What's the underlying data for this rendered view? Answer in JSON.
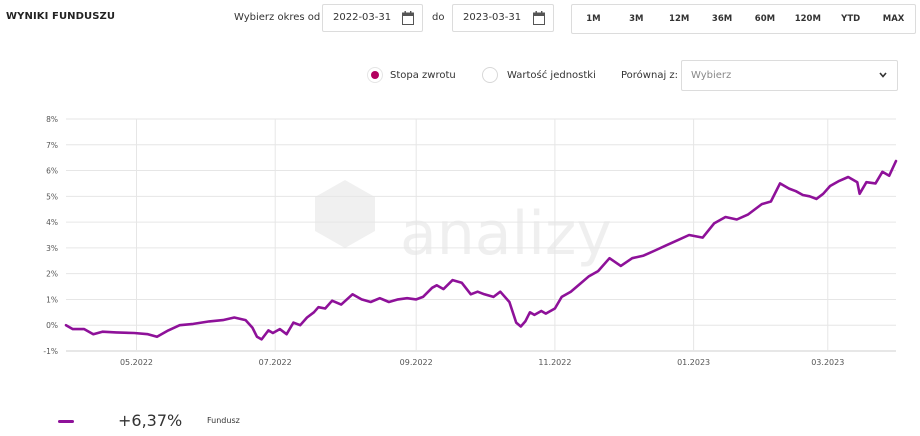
{
  "header": {
    "title": "WYNIKI FUNDUSZU"
  },
  "range": {
    "from_label": "Wybierz okres od",
    "from_value": "2022-03-31",
    "to_label": "do",
    "to_value": "2023-03-31"
  },
  "periods": [
    "1M",
    "3M",
    "12M",
    "36M",
    "60M",
    "120M",
    "YTD",
    "MAX"
  ],
  "mode": {
    "option1": "Stopa zwrotu",
    "option1_selected": true,
    "option2": "Wartość jednostki",
    "option2_selected": false
  },
  "compare": {
    "label": "Porównaj z:",
    "placeholder": "Wybierz"
  },
  "colors": {
    "series": "#8e1199",
    "accent": "#b3005f",
    "grid": "#e6e6e6"
  },
  "chart_data": {
    "type": "line",
    "yticks": [
      "8%",
      "7%",
      "6%",
      "5%",
      "4%",
      "3%",
      "2%",
      "1%",
      "0%",
      "-1%"
    ],
    "xticks": [
      {
        "label": "05.2022",
        "date": "2022-05-01"
      },
      {
        "label": "07.2022",
        "date": "2022-07-01"
      },
      {
        "label": "09.2022",
        "date": "2022-09-01"
      },
      {
        "label": "11.2022",
        "date": "2022-11-01"
      },
      {
        "label": "01.2023",
        "date": "2023-01-01"
      },
      {
        "label": "03.2023",
        "date": "2023-03-01"
      }
    ],
    "xlim": [
      "2022-03-31",
      "2023-03-31"
    ],
    "ylim": [
      -1,
      8
    ],
    "grid": true,
    "series": [
      {
        "name": "Fundusz",
        "x": [
          "2022-03-31",
          "2022-04-03",
          "2022-04-08",
          "2022-04-12",
          "2022-04-16",
          "2022-04-22",
          "2022-04-30",
          "2022-05-06",
          "2022-05-10",
          "2022-05-15",
          "2022-05-20",
          "2022-05-26",
          "2022-06-02",
          "2022-06-08",
          "2022-06-13",
          "2022-06-18",
          "2022-06-21",
          "2022-06-23",
          "2022-06-25",
          "2022-06-28",
          "2022-06-30",
          "2022-07-03",
          "2022-07-06",
          "2022-07-09",
          "2022-07-12",
          "2022-07-15",
          "2022-07-18",
          "2022-07-20",
          "2022-07-23",
          "2022-07-26",
          "2022-07-30",
          "2022-08-04",
          "2022-08-08",
          "2022-08-12",
          "2022-08-16",
          "2022-08-20",
          "2022-08-24",
          "2022-08-28",
          "2022-09-01",
          "2022-09-04",
          "2022-09-08",
          "2022-09-10",
          "2022-09-13",
          "2022-09-17",
          "2022-09-21",
          "2022-09-25",
          "2022-09-28",
          "2022-10-01",
          "2022-10-05",
          "2022-10-08",
          "2022-10-12",
          "2022-10-15",
          "2022-10-17",
          "2022-10-19",
          "2022-10-21",
          "2022-10-23",
          "2022-10-26",
          "2022-10-28",
          "2022-11-01",
          "2022-11-04",
          "2022-11-08",
          "2022-11-12",
          "2022-11-16",
          "2022-11-20",
          "2022-11-25",
          "2022-11-30",
          "2022-12-05",
          "2022-12-10",
          "2022-12-15",
          "2022-12-20",
          "2022-12-25",
          "2022-12-30",
          "2023-01-05",
          "2023-01-10",
          "2023-01-15",
          "2023-01-20",
          "2023-01-25",
          "2023-01-31",
          "2023-02-04",
          "2023-02-08",
          "2023-02-12",
          "2023-02-15",
          "2023-02-18",
          "2023-02-21",
          "2023-02-24",
          "2023-02-27",
          "2023-03-02",
          "2023-03-06",
          "2023-03-10",
          "2023-03-14",
          "2023-03-15",
          "2023-03-18",
          "2023-03-22",
          "2023-03-25",
          "2023-03-28",
          "2023-03-31"
        ],
        "values": [
          0.0,
          -0.15,
          -0.15,
          -0.35,
          -0.25,
          -0.28,
          -0.3,
          -0.35,
          -0.45,
          -0.2,
          0.0,
          0.05,
          0.15,
          0.2,
          0.3,
          0.2,
          -0.1,
          -0.45,
          -0.55,
          -0.2,
          -0.3,
          -0.15,
          -0.35,
          0.1,
          0.0,
          0.3,
          0.5,
          0.7,
          0.65,
          0.95,
          0.8,
          1.2,
          1.0,
          0.9,
          1.05,
          0.9,
          1.0,
          1.05,
          1.0,
          1.1,
          1.45,
          1.55,
          1.4,
          1.75,
          1.65,
          1.2,
          1.3,
          1.2,
          1.1,
          1.3,
          0.9,
          0.1,
          -0.05,
          0.15,
          0.5,
          0.4,
          0.55,
          0.45,
          0.65,
          1.1,
          1.3,
          1.6,
          1.9,
          2.1,
          2.6,
          2.3,
          2.6,
          2.7,
          2.9,
          3.1,
          3.3,
          3.5,
          3.4,
          3.95,
          4.2,
          4.1,
          4.3,
          4.7,
          4.8,
          5.5,
          5.3,
          5.2,
          5.05,
          5.0,
          4.9,
          5.1,
          5.4,
          5.6,
          5.75,
          5.55,
          5.1,
          5.55,
          5.5,
          5.95,
          5.8,
          6.37
        ]
      }
    ]
  },
  "legend": {
    "value": "+6,37%",
    "name": "Fundusz"
  }
}
